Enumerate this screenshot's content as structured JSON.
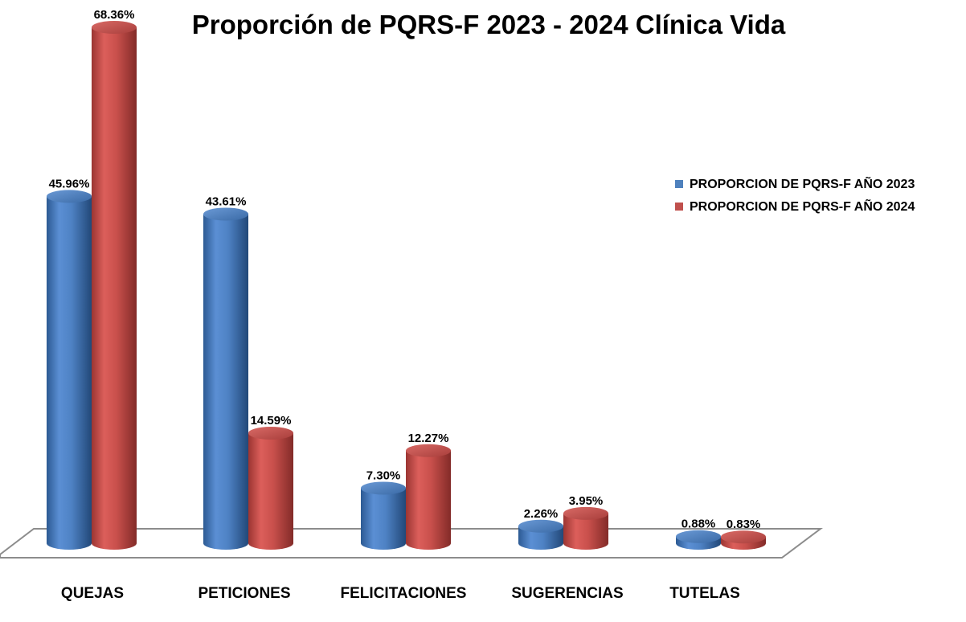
{
  "chart_data": {
    "type": "bar",
    "title": "Proporción de PQRS-F 2023 - 2024 Clínica Vida",
    "categories": [
      "QUEJAS",
      "PETICIONES",
      "FELICITACIONES",
      "SUGERENCIAS",
      "TUTELAS"
    ],
    "series": [
      {
        "name": "PROPORCION DE PQRS-F AÑO 2023",
        "values": [
          45.96,
          43.61,
          7.3,
          2.26,
          0.88
        ],
        "labels": [
          "45.96%",
          "43.61%",
          "7.30%",
          "2.26%",
          "0.88%"
        ],
        "color": "#4F81BD"
      },
      {
        "name": "PROPORCION DE PQRS-F AÑO 2024",
        "values": [
          68.36,
          14.59,
          12.27,
          3.95,
          0.83
        ],
        "labels": [
          "68.36%",
          "14.59%",
          "12.27%",
          "3.95%",
          "0.83%"
        ],
        "color": "#C0504D"
      }
    ],
    "ylim": [
      0,
      70
    ],
    "unit": "%",
    "grid": false,
    "legend_position": "right",
    "bar_style": "3d-cylinder"
  }
}
